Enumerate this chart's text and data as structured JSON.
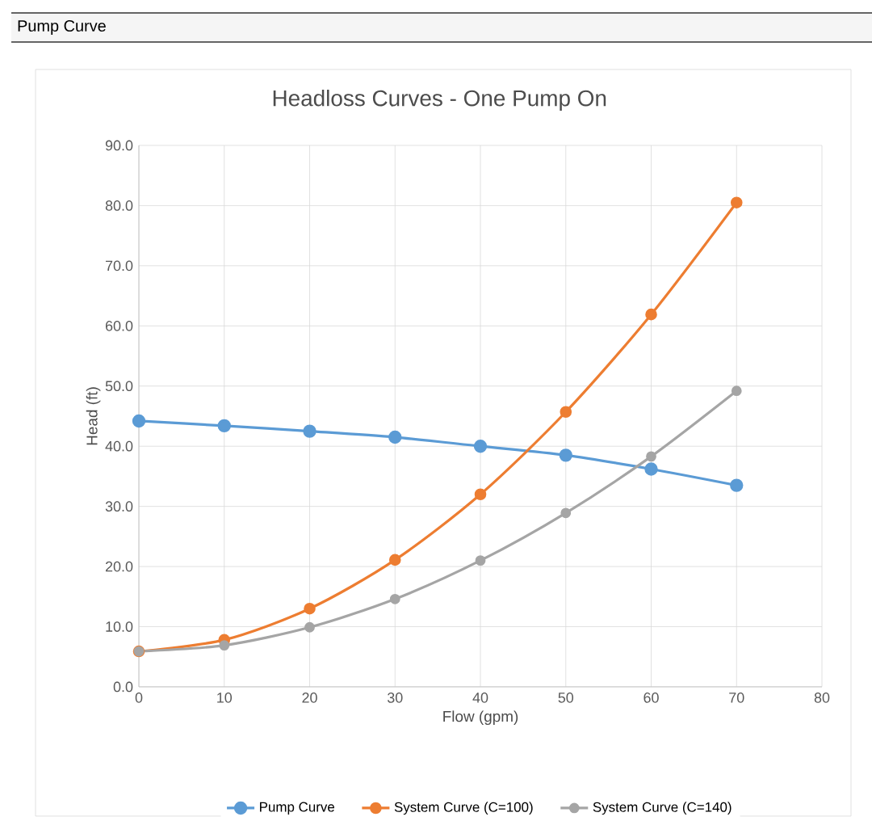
{
  "chart_data": {
    "type": "line",
    "title": "Headloss Curves - One Pump On",
    "xlabel": "Flow (gpm)",
    "ylabel": "Head (ft)",
    "annotations": [
      "Pump Curve"
    ],
    "x": [
      0,
      10,
      20,
      30,
      40,
      50,
      60,
      70
    ],
    "series": [
      {
        "name": "Pump Curve",
        "color": "#5b9bd5",
        "values": [
          44.2,
          43.4,
          42.5,
          41.5,
          40.0,
          38.5,
          36.2,
          33.5
        ]
      },
      {
        "name": "System Curve (C=100)",
        "color": "#ed7d31",
        "values": [
          5.9,
          7.8,
          13.0,
          21.1,
          32.0,
          45.7,
          61.9,
          80.5
        ]
      },
      {
        "name": "System Curve (C=140)",
        "color": "#a5a5a5",
        "values": [
          5.9,
          6.9,
          9.9,
          14.6,
          21.0,
          28.9,
          38.3,
          49.2
        ]
      }
    ],
    "xlim": [
      0,
      80
    ],
    "xticks": [
      0,
      10,
      20,
      30,
      40,
      50,
      60,
      70,
      80
    ],
    "ylim": [
      0,
      90
    ],
    "yticks": [
      {
        "value": 0,
        "label": "0.0"
      },
      {
        "value": 10,
        "label": "10.0"
      },
      {
        "value": 20,
        "label": "20.0"
      },
      {
        "value": 30,
        "label": "30.0"
      },
      {
        "value": 40,
        "label": "40.0"
      },
      {
        "value": 50,
        "label": "50.0"
      },
      {
        "value": 60,
        "label": "60.0"
      },
      {
        "value": 70,
        "label": "70.0"
      },
      {
        "value": 80,
        "label": "80.0"
      },
      {
        "value": 90,
        "label": "90.0"
      }
    ],
    "grid": true,
    "legend": "bottom",
    "marker": "circle",
    "line_style": "solid"
  }
}
